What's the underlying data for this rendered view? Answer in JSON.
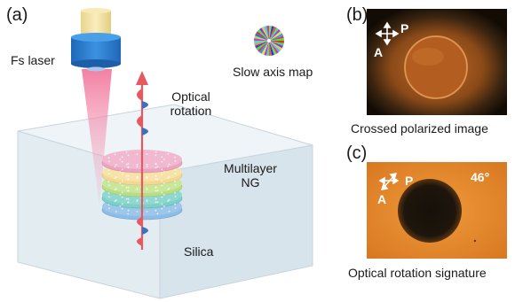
{
  "panels": {
    "a": "(a)",
    "b": "(b)",
    "c": "(c)"
  },
  "labels": {
    "fs_laser": "Fs laser",
    "slow_axis_map": "Slow axis map",
    "optical_rotation": [
      "Optical",
      "rotation"
    ],
    "multilayer_ng": [
      "Multilayer",
      "NG"
    ],
    "silica": "Silica"
  },
  "panel_b": {
    "caption": "Crossed polarized image",
    "overlay_p": "P",
    "overlay_a": "A"
  },
  "panel_c": {
    "caption": "Optical rotation signature",
    "overlay_p": "P",
    "overlay_a": "A",
    "angle": "46°"
  },
  "colors": {
    "laser_body": "#2e7fd0",
    "laser_top": "#f3e2a2",
    "beam": "#f06a93",
    "arrow": "#e8585f",
    "wave_blue": "#3f6ec4",
    "block": "#dfe9ef",
    "layers": [
      "#f0b9cf",
      "#f6e3a8",
      "#c9e79b",
      "#8fd8d2",
      "#9cc6ea"
    ],
    "photo_b_bg": "#1a1206",
    "photo_c_bg": "#e2852b"
  }
}
